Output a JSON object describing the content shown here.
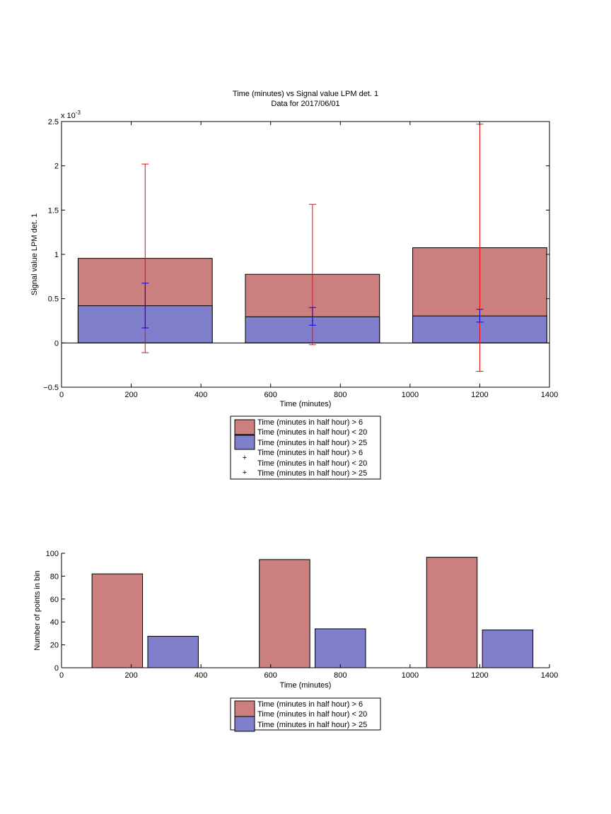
{
  "colors": {
    "series_a_fill": "#cc7f7f",
    "series_b_fill": "#7f7fcc",
    "errorbar_a": "#ff0000",
    "errorbar_b": "#0000ff",
    "axis": "#000000"
  },
  "chart_data": [
    {
      "type": "bar",
      "subtype": "overlaid-with-errorbars",
      "title": "Time (minutes) vs Signal value LPM det. 1",
      "subtitle": "Data for 2017/06/01",
      "xlabel": "Time (minutes)",
      "ylabel": "Signal value LPM det. 1",
      "yexponent_label": "x 10",
      "yexponent_power": "-3",
      "xlim": [
        0,
        1400
      ],
      "ylim": [
        -0.5,
        2.5
      ],
      "xticks": [
        0,
        200,
        400,
        600,
        800,
        1000,
        1200,
        1400
      ],
      "yticks": [
        -0.5,
        0,
        0.5,
        1,
        1.5,
        2,
        2.5
      ],
      "ytick_labels": [
        "−0.5",
        "0",
        "0.5",
        "1",
        "1.5",
        "2",
        "2.5"
      ],
      "grid": false,
      "bar_width": 385,
      "x": [
        240,
        720,
        1200
      ],
      "series": [
        {
          "values": [
            0.955,
            0.775,
            1.075
          ],
          "error_low": [
            -0.11,
            -0.02,
            -0.32
          ],
          "error_high": [
            2.02,
            1.565,
            2.47
          ]
        },
        {
          "values": [
            0.42,
            0.295,
            0.305
          ],
          "error_low": [
            0.17,
            0.2,
            0.235
          ],
          "error_high": [
            0.675,
            0.4,
            0.38
          ]
        }
      ],
      "legend": {
        "placement": "below",
        "entries": [
          "Time (minutes in half hour) > 6",
          "Time (minutes in half hour) < 20",
          "Time (minutes in half hour) > 25",
          "Time (minutes in half hour) > 6",
          "Time (minutes in half hour) < 20",
          "Time (minutes in half hour) > 25"
        ],
        "marker_symbol": "+"
      }
    },
    {
      "type": "bar",
      "subtype": "grouped",
      "xlabel": "Time (minutes)",
      "ylabel": "Number of points in bin",
      "xlim": [
        0,
        1400
      ],
      "ylim": [
        0,
        100
      ],
      "xticks": [
        0,
        200,
        400,
        600,
        800,
        1000,
        1200,
        1400
      ],
      "yticks": [
        0,
        20,
        40,
        60,
        80,
        100
      ],
      "grid": false,
      "bar_width": 145,
      "series": [
        {
          "x": [
            160,
            640,
            1120
          ],
          "values": [
            82,
            94.5,
            96.5
          ]
        },
        {
          "x": [
            320,
            800,
            1280
          ],
          "values": [
            27.5,
            34,
            33
          ]
        }
      ],
      "legend": {
        "placement": "below",
        "entries": [
          "Time (minutes in half hour) > 6",
          "Time (minutes in half hour) < 20",
          "Time (minutes in half hour) > 25"
        ]
      }
    }
  ]
}
